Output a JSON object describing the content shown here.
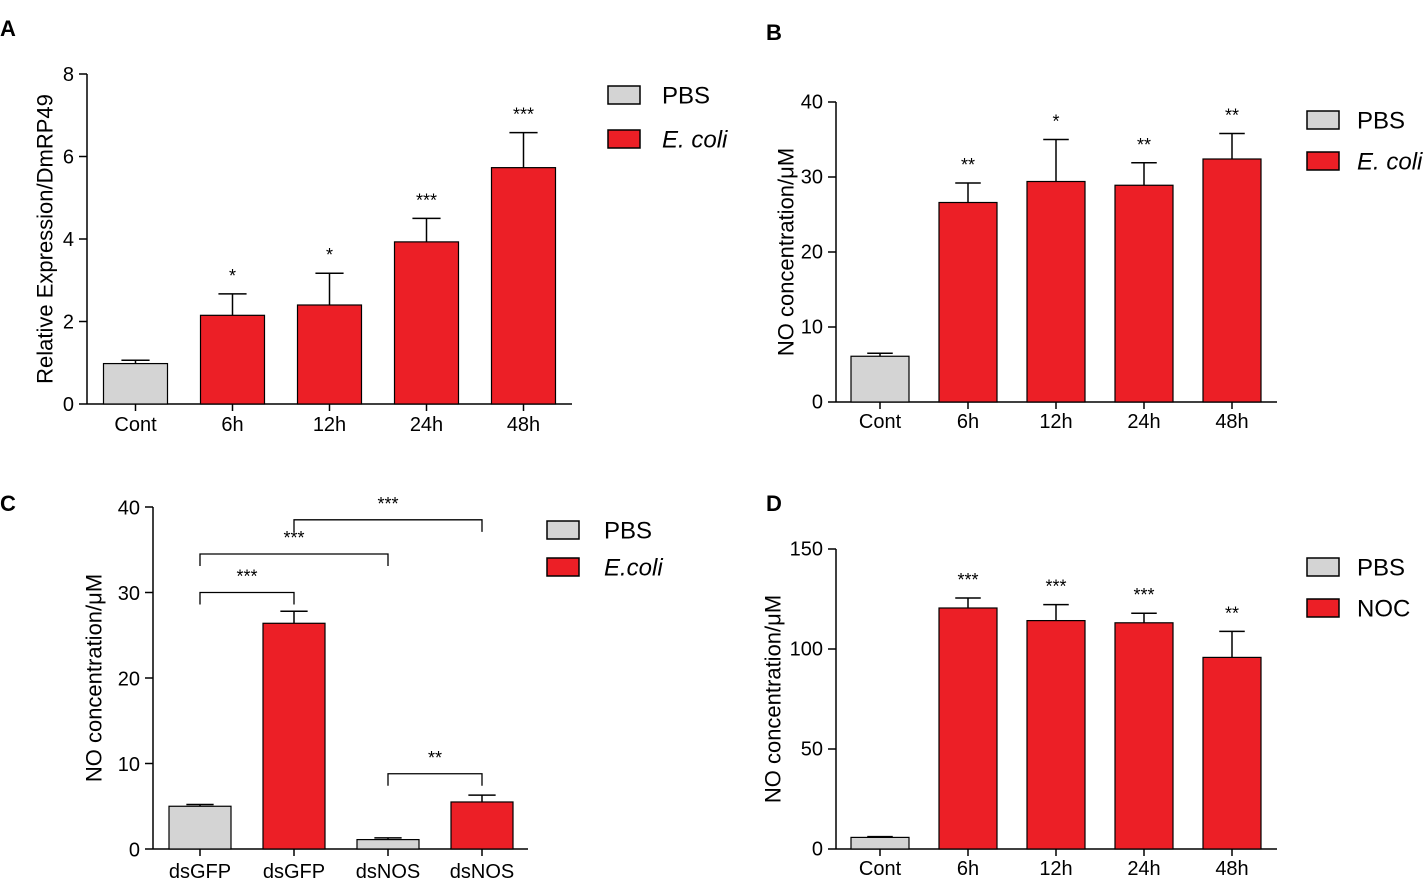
{
  "colors": {
    "pbs": "#d4d4d4",
    "treated": "#ec1f26",
    "axis": "#000000"
  },
  "chart_data": [
    {
      "panel": "A",
      "type": "bar",
      "ylabel": "Relative Expression/DmRP49",
      "ylim": [
        0,
        8
      ],
      "yticks": [
        0,
        2,
        4,
        6,
        8
      ],
      "categories": [
        "Cont",
        "6h",
        "12h",
        "24h",
        "48h"
      ],
      "values": [
        0.98,
        2.15,
        2.4,
        3.93,
        5.73
      ],
      "errors": [
        0.08,
        0.52,
        0.77,
        0.57,
        0.85
      ],
      "groups": [
        "PBS",
        "E. coli",
        "E. coli",
        "E. coli",
        "E. coli"
      ],
      "significance": [
        "",
        "*",
        "*",
        "***",
        "***"
      ],
      "legend": [
        {
          "label": "PBS",
          "italic": false
        },
        {
          "label": "E. coli",
          "italic": true
        }
      ]
    },
    {
      "panel": "B",
      "type": "bar",
      "ylabel": "NO concentration/μM",
      "ylim": [
        0,
        40
      ],
      "yticks": [
        0,
        10,
        20,
        30,
        40
      ],
      "categories": [
        "Cont",
        "6h",
        "12h",
        "24h",
        "48h"
      ],
      "values": [
        6.1,
        26.6,
        29.4,
        28.9,
        32.4
      ],
      "errors": [
        0.4,
        2.6,
        5.6,
        3.0,
        3.4
      ],
      "groups": [
        "PBS",
        "E. coli",
        "E. coli",
        "E. coli",
        "E. coli"
      ],
      "significance": [
        "",
        "**",
        "*",
        "**",
        "**"
      ],
      "legend": [
        {
          "label": "PBS",
          "italic": false
        },
        {
          "label": "E. coli",
          "italic": true
        }
      ]
    },
    {
      "panel": "C",
      "type": "bar",
      "ylabel": "NO concentration/μM",
      "ylim": [
        0,
        40
      ],
      "yticks": [
        0,
        10,
        20,
        30,
        40
      ],
      "categories": [
        "dsGFP",
        "dsGFP",
        "dsNOS",
        "dsNOS"
      ],
      "values": [
        5.0,
        26.4,
        1.1,
        5.5
      ],
      "errors": [
        0.2,
        1.4,
        0.2,
        0.8
      ],
      "groups": [
        "PBS",
        "E.coli",
        "PBS",
        "E.coli"
      ],
      "significance": [
        "",
        "",
        "",
        ""
      ],
      "brackets": [
        {
          "from": 0,
          "to": 1,
          "label": "***",
          "level": 30
        },
        {
          "from": 0,
          "to": 2,
          "label": "***",
          "level": 34.5
        },
        {
          "from": 1,
          "to": 3,
          "label": "***",
          "level": 38.5
        },
        {
          "from": 2,
          "to": 3,
          "label": "**",
          "level": 8.8
        }
      ],
      "legend": [
        {
          "label": "PBS",
          "italic": false
        },
        {
          "label": "E.coli",
          "italic": true
        }
      ]
    },
    {
      "panel": "D",
      "type": "bar",
      "ylabel": "NO concentration/μM",
      "ylim": [
        0,
        150
      ],
      "yticks": [
        0,
        50,
        100,
        150
      ],
      "categories": [
        "Cont",
        "6h",
        "12h",
        "24h",
        "48h"
      ],
      "values": [
        5.8,
        120.5,
        114.2,
        113.1,
        95.8
      ],
      "errors": [
        0.4,
        5.0,
        8.0,
        4.8,
        13.0
      ],
      "groups": [
        "PBS",
        "NOC",
        "NOC",
        "NOC",
        "NOC"
      ],
      "significance": [
        "",
        "***",
        "***",
        "***",
        "**"
      ],
      "legend": [
        {
          "label": "PBS",
          "italic": false
        },
        {
          "label": "NOC",
          "italic": false
        }
      ]
    }
  ]
}
